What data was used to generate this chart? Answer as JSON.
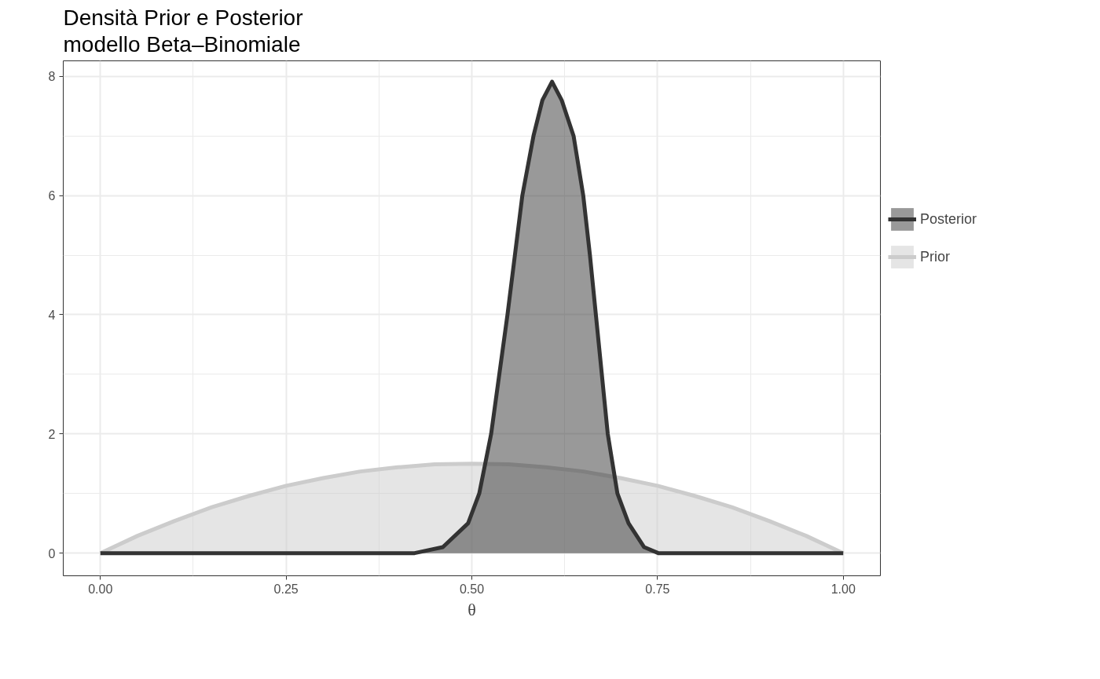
{
  "chart_data": {
    "type": "area",
    "title": "Densità Prior e Posterior\nmodello Beta–Binomiale",
    "xlabel": "θ",
    "xlim": [
      -0.05,
      1.05
    ],
    "ylim": [
      -0.38,
      8.26
    ],
    "xticks": [
      {
        "value": 0,
        "label": "0.00"
      },
      {
        "value": 0.25,
        "label": "0.25"
      },
      {
        "value": 0.5,
        "label": "0.50"
      },
      {
        "value": 0.75,
        "label": "0.75"
      },
      {
        "value": 1,
        "label": "1.00"
      }
    ],
    "yticks": [
      0,
      2,
      4,
      6,
      8
    ],
    "grid": true,
    "legend": "right",
    "series": [
      {
        "name": "Posterior",
        "color": "#333333",
        "x": [
          0,
          0.1,
          0.2,
          0.3,
          0.4,
          0.423,
          0.461,
          0.495,
          0.51,
          0.526,
          0.537,
          0.548,
          0.558,
          0.568,
          0.583,
          0.595,
          0.608,
          0.621,
          0.637,
          0.65,
          0.659,
          0.667,
          0.675,
          0.683,
          0.696,
          0.711,
          0.732,
          0.751,
          0.8,
          0.9,
          1
        ],
        "values": [
          0,
          0,
          0,
          0,
          0,
          0,
          0.1,
          0.5,
          1,
          2,
          3,
          4,
          5,
          6,
          7,
          7.6,
          7.91,
          7.6,
          7,
          6,
          5,
          4,
          3,
          2,
          1,
          0.5,
          0.1,
          0,
          0,
          0,
          0
        ]
      },
      {
        "name": "Prior",
        "color": "#cccccc",
        "x": [
          0,
          0.05,
          0.1,
          0.15,
          0.2,
          0.25,
          0.3,
          0.35,
          0.4,
          0.45,
          0.5,
          0.55,
          0.6,
          0.65,
          0.7,
          0.75,
          0.8,
          0.85,
          0.9,
          0.95,
          1
        ],
        "values": [
          0,
          0.29,
          0.54,
          0.77,
          0.96,
          1.13,
          1.26,
          1.37,
          1.44,
          1.49,
          1.5,
          1.49,
          1.44,
          1.37,
          1.26,
          1.13,
          0.96,
          0.77,
          0.54,
          0.29,
          0
        ]
      }
    ]
  }
}
